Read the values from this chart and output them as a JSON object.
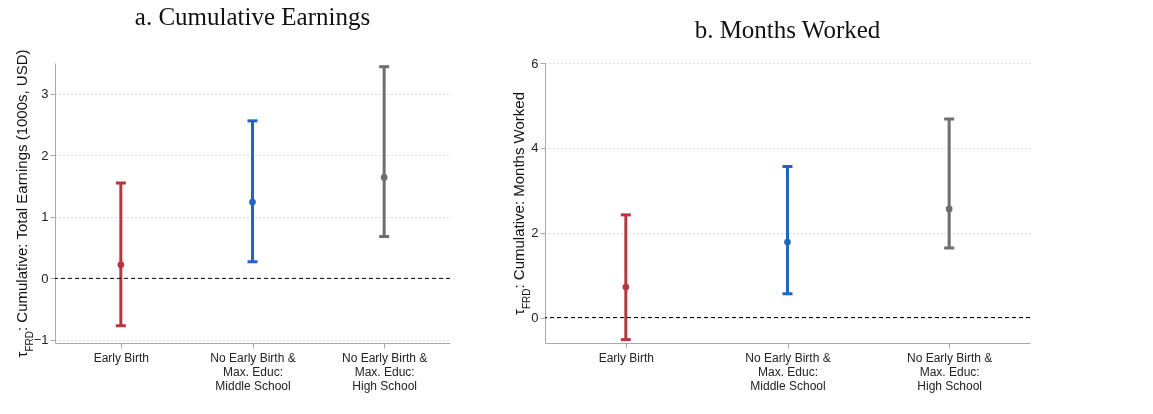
{
  "chart_data": [
    {
      "type": "scatter",
      "title": "a. Cumulative Earnings",
      "ylabel": "τ$_{FRD}$: Cumulative: Total Earnings (1000s, USD)",
      "categories": [
        "Early Birth",
        "No Early Birth &\nMax. Educ:\nMiddle School",
        "No Early Birth &\nMax. Educ:\nHigh School"
      ],
      "values": [
        0.22,
        1.24,
        1.64
      ],
      "errors": [
        [
          -0.77,
          1.55
        ],
        [
          0.27,
          2.56
        ],
        [
          0.68,
          3.44
        ]
      ],
      "colors": [
        "#b5363f",
        "#1f66c2",
        "#6e6e6e"
      ],
      "ylim": [
        -1.05,
        3.5
      ],
      "yticks": [
        -1,
        0,
        1,
        2,
        3
      ],
      "grid": "y",
      "marker": "circle",
      "ref_lines": [
        {
          "axis": "y",
          "value": 0,
          "color": "#000000",
          "line_style": "dashed"
        }
      ]
    },
    {
      "type": "scatter",
      "title": "b. Months Worked",
      "ylabel": "τ$_{FRD}$: Cumulative: Months Worked",
      "categories": [
        "Early Birth",
        "No Early Birth &\nMax. Educ:\nMiddle School",
        "No Early Birth &\nMax. Educ:\nHigh School"
      ],
      "values": [
        0.72,
        1.78,
        2.56
      ],
      "errors": [
        [
          -0.52,
          2.42
        ],
        [
          0.56,
          3.56
        ],
        [
          1.64,
          4.68
        ]
      ],
      "colors": [
        "#b5363f",
        "#1f66c2",
        "#6e6e6e"
      ],
      "ylim": [
        -0.6,
        6
      ],
      "yticks": [
        0,
        2,
        4,
        6
      ],
      "grid": "y",
      "marker": "circle",
      "ref_lines": [
        {
          "axis": "y",
          "value": 0,
          "color": "#000000",
          "line_style": "dashed"
        }
      ]
    }
  ]
}
